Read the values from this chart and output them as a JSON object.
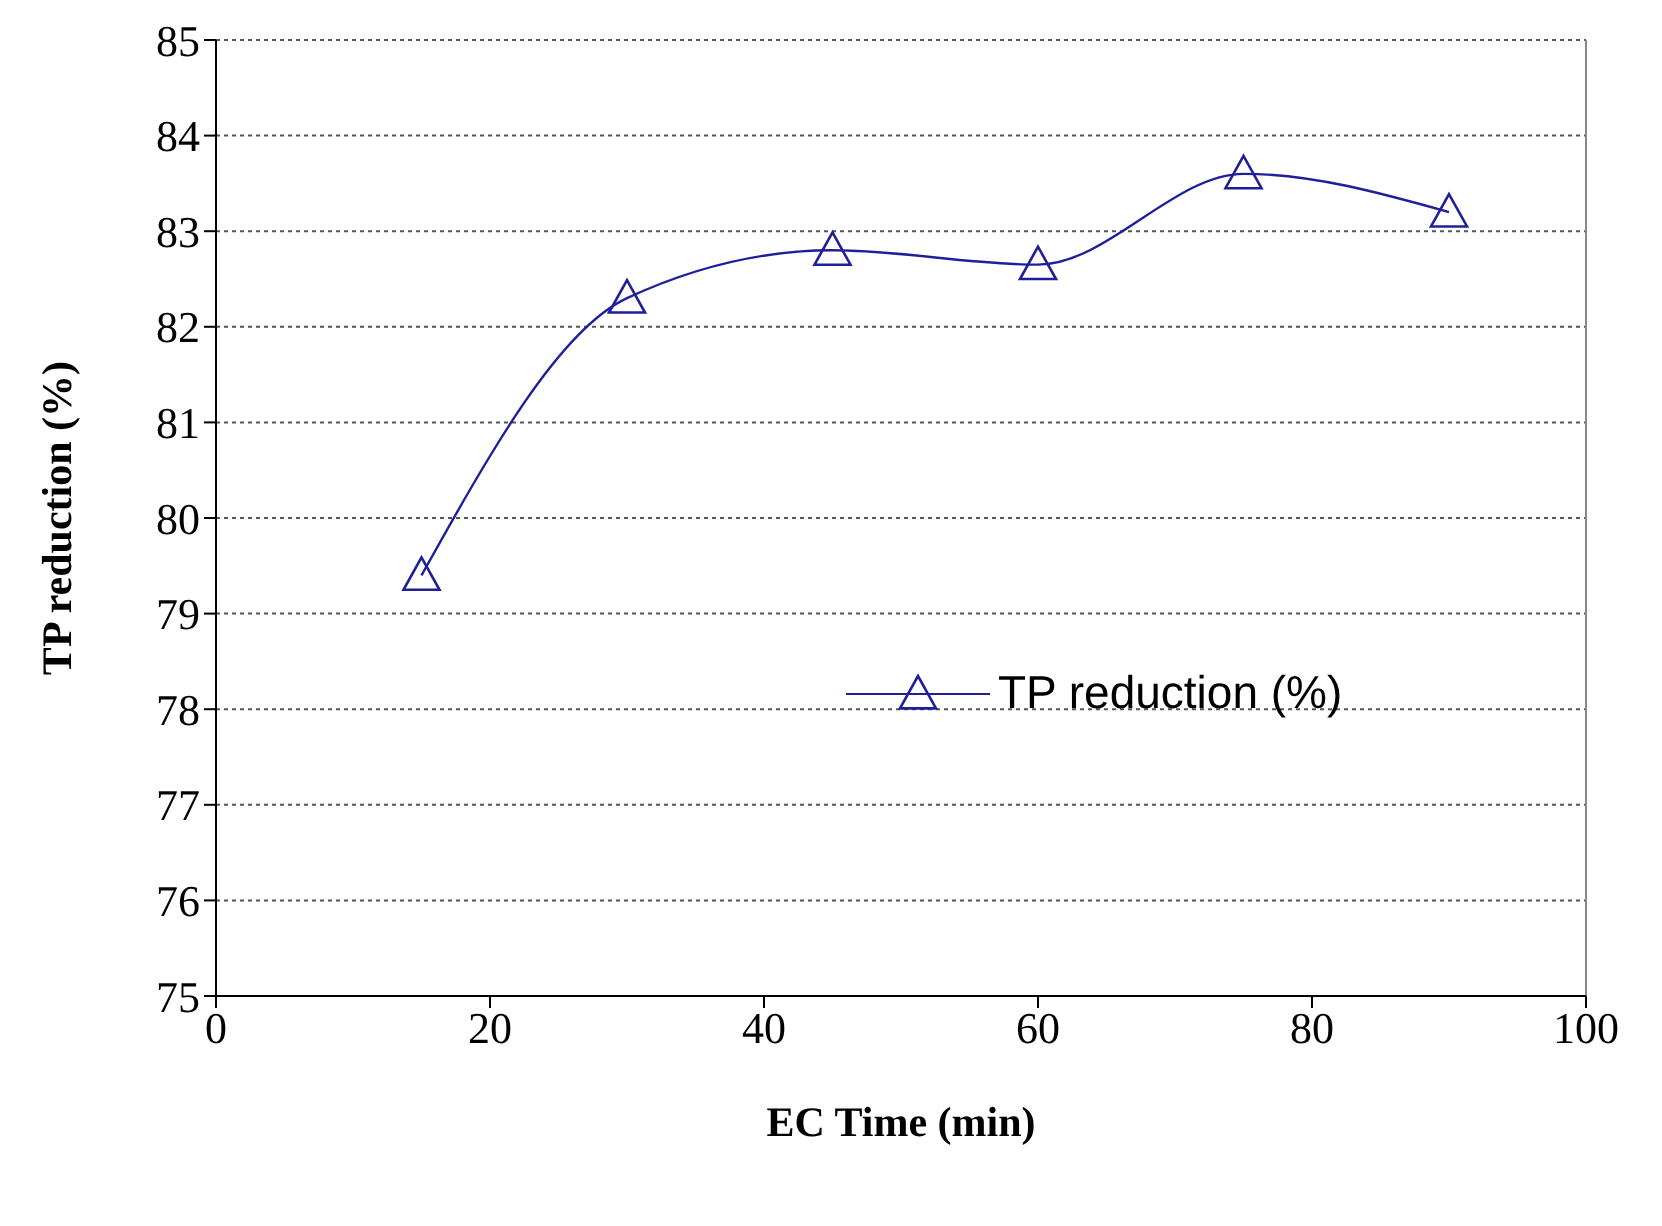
{
  "chart_data": {
    "type": "line",
    "xlabel": "EC Time (min)",
    "ylabel": "TP reduction (%)",
    "x": [
      15,
      30,
      45,
      60,
      75,
      90
    ],
    "series": [
      {
        "name": "TP reduction (%)",
        "color": "#1f1f9a",
        "values": [
          79.4,
          82.3,
          82.8,
          82.65,
          83.6,
          83.2
        ]
      }
    ],
    "xlim": [
      0,
      100
    ],
    "xticks": [
      0,
      20,
      40,
      60,
      80,
      100
    ],
    "ylim": [
      75,
      85
    ],
    "yticks": [
      75,
      76,
      77,
      78,
      79,
      80,
      81,
      82,
      83,
      84,
      85
    ],
    "grid": "y",
    "legend": "right",
    "marker": "triangle",
    "line_style": "solid"
  }
}
